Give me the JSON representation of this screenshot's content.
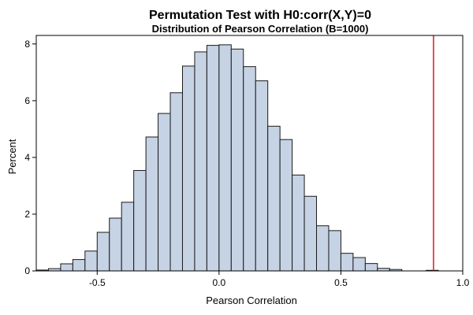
{
  "chart_data": {
    "type": "bar",
    "title": "Permutation Test with H0:corr(X,Y)=0",
    "subtitle": "Distribution of Pearson Correlation (B=1000)",
    "xlabel": "Pearson Correlation",
    "ylabel": "Percent",
    "xlim": [
      -0.75,
      1.0
    ],
    "ylim": [
      0,
      8.3
    ],
    "xticks": [
      "-0.5",
      "0.0",
      "0.5",
      "1.0"
    ],
    "yticks": [
      "0",
      "2",
      "4",
      "6",
      "8"
    ],
    "grid": false,
    "bin_width": 0.05,
    "bins": [
      {
        "center": -0.725,
        "value": 0.03
      },
      {
        "center": -0.675,
        "value": 0.08
      },
      {
        "center": -0.625,
        "value": 0.25
      },
      {
        "center": -0.575,
        "value": 0.4
      },
      {
        "center": -0.525,
        "value": 0.7
      },
      {
        "center": -0.475,
        "value": 1.36
      },
      {
        "center": -0.425,
        "value": 1.86
      },
      {
        "center": -0.375,
        "value": 2.42
      },
      {
        "center": -0.325,
        "value": 3.54
      },
      {
        "center": -0.275,
        "value": 4.72
      },
      {
        "center": -0.225,
        "value": 5.55
      },
      {
        "center": -0.175,
        "value": 6.28
      },
      {
        "center": -0.125,
        "value": 7.22
      },
      {
        "center": -0.075,
        "value": 7.72
      },
      {
        "center": -0.025,
        "value": 7.95
      },
      {
        "center": 0.025,
        "value": 7.97
      },
      {
        "center": 0.075,
        "value": 7.82
      },
      {
        "center": 0.125,
        "value": 7.2
      },
      {
        "center": 0.175,
        "value": 6.7
      },
      {
        "center": 0.225,
        "value": 5.1
      },
      {
        "center": 0.275,
        "value": 4.63
      },
      {
        "center": 0.325,
        "value": 3.38
      },
      {
        "center": 0.375,
        "value": 2.63
      },
      {
        "center": 0.425,
        "value": 1.59
      },
      {
        "center": 0.475,
        "value": 1.42
      },
      {
        "center": 0.525,
        "value": 0.62
      },
      {
        "center": 0.575,
        "value": 0.47
      },
      {
        "center": 0.625,
        "value": 0.26
      },
      {
        "center": 0.675,
        "value": 0.09
      },
      {
        "center": 0.725,
        "value": 0.05
      },
      {
        "center": 0.875,
        "value": 0.02
      }
    ],
    "reference_line": {
      "x": 0.88,
      "color": "#e8141a"
    },
    "colors": {
      "bar_fill": "#c6d3e4",
      "bar_stroke": "#1a1a1a",
      "axis": "#000000"
    }
  }
}
